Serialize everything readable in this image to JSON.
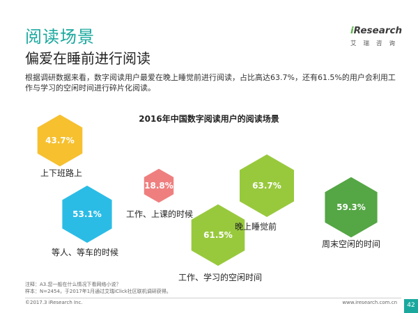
{
  "header": {
    "title": "阅读场景",
    "subtitle": "偏爱在睡前进行阅读",
    "description": "根据调研数据来看，数字阅读用户最爱在晚上睡觉前进行阅读，占比高达63.7%，还有61.5%的用户会利用工作与学习的空闲时间进行碎片化阅读。"
  },
  "logo": {
    "prefix": "i",
    "word": "Research",
    "cn": "艾瑞咨询"
  },
  "chart_data": {
    "type": "bar",
    "title": "2016年中国数字阅读用户的阅读场景",
    "unit": "%",
    "categories": [
      "上下班路上",
      "等人、等车的时候",
      "工作、上课的时候",
      "工作、学习的空闲时间",
      "晚上睡觉前",
      "周末空闲的时间"
    ],
    "values": [
      43.7,
      53.1,
      18.8,
      61.5,
      63.7,
      59.3
    ],
    "value_labels": [
      "43.7%",
      "53.1%",
      "18.8%",
      "61.5%",
      "63.7%",
      "59.3%"
    ],
    "colors": [
      "#f6c02f",
      "#2bbce6",
      "#ef7f7f",
      "#98c93d",
      "#98c93d",
      "#55a645"
    ]
  },
  "notes": {
    "note": "注释：A3.您一般在什么情况下看网络小说？",
    "sample": "样本：N=2454，于2017年1月通过艾瑞iClick社区联机调研获得。"
  },
  "footer": {
    "copyright": "©2017.3 iResearch Inc.",
    "website": "www.iresearch.com.cn",
    "page": "42"
  }
}
